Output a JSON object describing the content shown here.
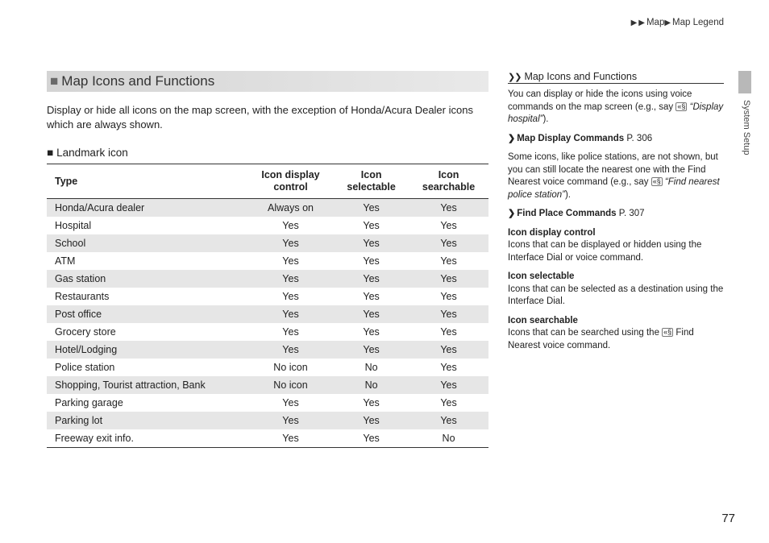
{
  "breadcrumb": {
    "level1": "Map",
    "level2": "Map Legend",
    "arrow": "▶"
  },
  "side": {
    "tab_label": "System Setup"
  },
  "main": {
    "heading": "Map Icons and Functions",
    "square": "■",
    "intro": "Display or hide all icons on the map screen, with the exception of Honda/Acura Dealer icons which are always shown.",
    "sub_heading": "Landmark icon",
    "sub_marker": "■",
    "table": {
      "columns": [
        "Type",
        "Icon display control",
        "Icon selectable",
        "Icon searchable"
      ],
      "rows": [
        [
          "Honda/Acura dealer",
          "Always on",
          "Yes",
          "Yes"
        ],
        [
          "Hospital",
          "Yes",
          "Yes",
          "Yes"
        ],
        [
          "School",
          "Yes",
          "Yes",
          "Yes"
        ],
        [
          "ATM",
          "Yes",
          "Yes",
          "Yes"
        ],
        [
          "Gas station",
          "Yes",
          "Yes",
          "Yes"
        ],
        [
          "Restaurants",
          "Yes",
          "Yes",
          "Yes"
        ],
        [
          "Post office",
          "Yes",
          "Yes",
          "Yes"
        ],
        [
          "Grocery store",
          "Yes",
          "Yes",
          "Yes"
        ],
        [
          "Hotel/Lodging",
          "Yes",
          "Yes",
          "Yes"
        ],
        [
          "Police station",
          "No icon",
          "No",
          "Yes"
        ],
        [
          "Shopping, Tourist attraction, Bank",
          "No icon",
          "No",
          "Yes"
        ],
        [
          "Parking garage",
          "Yes",
          "Yes",
          "Yes"
        ],
        [
          "Parking lot",
          "Yes",
          "Yes",
          "Yes"
        ],
        [
          "Freeway exit info.",
          "Yes",
          "Yes",
          "No"
        ]
      ]
    }
  },
  "right": {
    "heading": "Map Icons and Functions",
    "dbl": "❯❯",
    "voice_glyph": "«§",
    "p1a": "You can display or hide the icons using voice commands on the map screen (e.g., say ",
    "p1b": "“Display hospital”",
    "p1c": ").",
    "ref1": {
      "marker": "❯",
      "label": "Map Display Commands",
      "page": "P. 306"
    },
    "p2a": "Some icons, like police stations, are not shown, but you can still locate the nearest one with the Find Nearest voice command (e.g., say ",
    "p2b": "“Find nearest police station”",
    "p2c": ").",
    "ref2": {
      "marker": "❯",
      "label": "Find Place Commands",
      "page": "P. 307"
    },
    "term1": {
      "title": "Icon display control",
      "body": "Icons that can be displayed or hidden using the Interface Dial or voice command."
    },
    "term2": {
      "title": "Icon selectable",
      "body": "Icons that can be selected as a destination using the Interface Dial."
    },
    "term3": {
      "title": "Icon searchable",
      "body_a": "Icons that can be searched using the ",
      "body_b": " Find Nearest voice command."
    }
  },
  "page_number": "77"
}
